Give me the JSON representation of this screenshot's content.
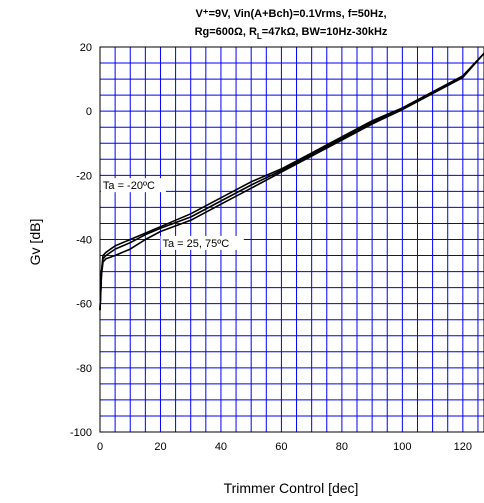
{
  "chart_data": {
    "type": "line",
    "title_line1": "V⁺=9V, Vin(A+Bch)=0.1Vrms, f=50Hz,",
    "title_line2": "Rg=600Ω, R",
    "title_line2_sub": "L",
    "title_line2_rest": "=47kΩ, BW=10Hz-30kHz",
    "xlabel": "Trimmer Control [dec]",
    "ylabel": "Gv [dB]",
    "xlim": [
      0,
      127
    ],
    "ylim": [
      -100,
      20
    ],
    "x_ticks": [
      0,
      20,
      40,
      60,
      80,
      100,
      120
    ],
    "y_ticks": [
      20,
      0,
      -20,
      -40,
      -60,
      -80,
      -100
    ],
    "x_grid_step": 5,
    "y_grid_step": 5,
    "grid": true,
    "grid_color": "#0000ff",
    "line_color": "#000000",
    "series": [
      {
        "x": [
          0,
          0.5,
          1,
          2,
          5,
          10,
          15,
          20,
          30,
          40,
          50,
          60,
          70,
          80,
          90,
          100,
          110,
          120,
          127
        ],
        "y": [
          -62,
          -50,
          -45,
          -44,
          -42,
          -40,
          -38,
          -36,
          -32,
          -27,
          -22,
          -18,
          -13,
          -8,
          -3,
          1,
          6,
          11,
          18
        ]
      },
      {
        "x": [
          0,
          0.5,
          1,
          2,
          5,
          10,
          15,
          20,
          30,
          40,
          50,
          60,
          70,
          80,
          90,
          100,
          110,
          120,
          127
        ],
        "y": [
          -62,
          -50,
          -46,
          -45,
          -43,
          -41,
          -38.5,
          -36.5,
          -33,
          -28,
          -23,
          -18.5,
          -13.5,
          -8.5,
          -3.5,
          1,
          6,
          11,
          18
        ]
      },
      {
        "x": [
          0,
          0.5,
          1,
          2,
          5,
          10,
          15,
          20,
          30,
          40,
          50,
          60,
          70,
          80,
          90,
          100,
          110,
          120,
          127
        ],
        "y": [
          -62,
          -51,
          -47,
          -46,
          -45,
          -43,
          -40,
          -37.5,
          -34,
          -29,
          -24,
          -19,
          -14,
          -9,
          -4,
          0.5,
          5.5,
          10.5,
          18
        ]
      }
    ],
    "annotations": [
      {
        "text": "Ta = -20ºC",
        "x": 0.3,
        "y": -24
      },
      {
        "text": "Ta = 25, 75ºC",
        "x": 20,
        "y": -42
      }
    ]
  }
}
